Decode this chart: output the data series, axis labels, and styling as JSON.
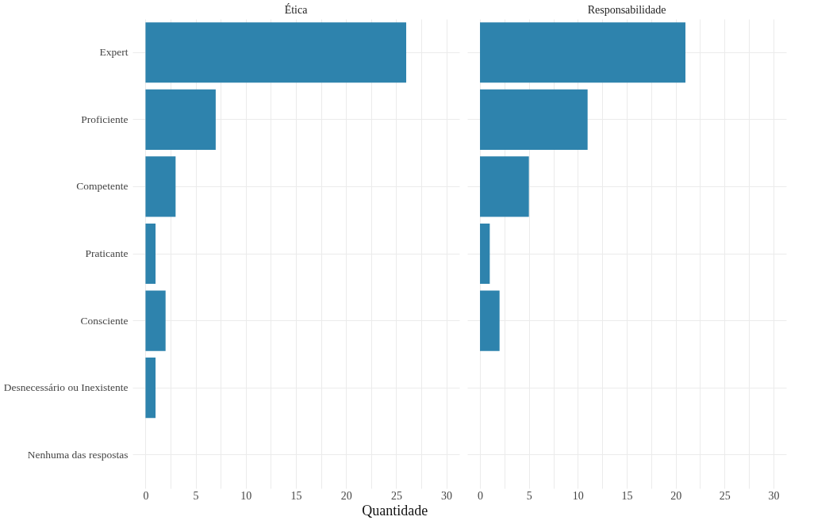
{
  "chart_data": [
    {
      "type": "bar",
      "orientation": "horizontal",
      "title": "Ética",
      "xlabel": "Quantidade",
      "categories": [
        "Expert",
        "Proficiente",
        "Competente",
        "Praticante",
        "Consciente",
        "Desnecessário ou Inexistente",
        "Nenhuma das respostas"
      ],
      "values": [
        26,
        7,
        3,
        1,
        2,
        1,
        0
      ],
      "color": "#2e83ad",
      "xlim": [
        -1.3,
        31.3
      ],
      "xticks": [
        0,
        {
          "value": 2.5,
          "label": null
        },
        5,
        {
          "value": 7.5,
          "label": null
        },
        10,
        {
          "value": 12.5,
          "label": null
        },
        15,
        {
          "value": 17.5,
          "label": null
        },
        20,
        {
          "value": 22.5,
          "label": null
        },
        25,
        {
          "value": 27.5,
          "label": null
        },
        30
      ],
      "grid": true
    },
    {
      "type": "bar",
      "orientation": "horizontal",
      "title": "Responsabilidade",
      "categories": [
        null,
        null,
        null,
        null,
        null,
        null,
        null
      ],
      "values": [
        21,
        11,
        5,
        1,
        2,
        0,
        0
      ],
      "color": "#2e83ad",
      "xlim": [
        -1.3,
        31.3
      ],
      "xticks": [
        0,
        {
          "value": 2.5,
          "label": null
        },
        5,
        {
          "value": 7.5,
          "label": null
        },
        10,
        {
          "value": 12.5,
          "label": null
        },
        15,
        {
          "value": 17.5,
          "label": null
        },
        20,
        {
          "value": 22.5,
          "label": null
        },
        25,
        {
          "value": 27.5,
          "label": null
        },
        30
      ],
      "grid": true,
      "tick_labels": "x"
    }
  ]
}
